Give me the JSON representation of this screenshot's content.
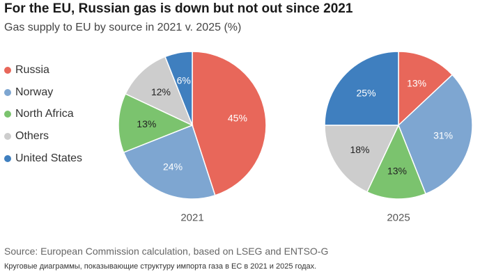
{
  "title": "For the EU, Russian gas is down but not out since 2021",
  "subtitle": "Gas supply to EU by source in 2021 v. 2025 (%)",
  "legend": [
    {
      "label": "Russia",
      "color": "#e8675a"
    },
    {
      "label": "Norway",
      "color": "#7ea6d1"
    },
    {
      "label": "North Africa",
      "color": "#7bc36e"
    },
    {
      "label": "Others",
      "color": "#cdcdcd"
    },
    {
      "label": "United States",
      "color": "#3f7fbf"
    }
  ],
  "chart_data": [
    {
      "type": "pie",
      "label": "2021",
      "categories": [
        "Russia",
        "Norway",
        "North Africa",
        "Others",
        "United States"
      ],
      "values": [
        45,
        24,
        13,
        12,
        6
      ],
      "value_labels": [
        "45%",
        "24%",
        "13%",
        "12%",
        "6%"
      ],
      "label_colors": [
        "#ffffff",
        "#ffffff",
        "#222222",
        "#222222",
        "#ffffff"
      ]
    },
    {
      "type": "pie",
      "label": "2025",
      "categories": [
        "Russia",
        "Norway",
        "North Africa",
        "Others",
        "United States"
      ],
      "values": [
        13,
        31,
        13,
        18,
        25
      ],
      "value_labels": [
        "13%",
        "31%",
        "13%",
        "18%",
        "25%"
      ],
      "label_colors": [
        "#ffffff",
        "#ffffff",
        "#222222",
        "#222222",
        "#ffffff"
      ]
    }
  ],
  "source": "Source: European Commission calculation, based on LSEG and ENTSO-G",
  "caption": "Круговые диаграммы, показывающие структуру импорта газа в ЕС в 2021 и 2025 годах."
}
